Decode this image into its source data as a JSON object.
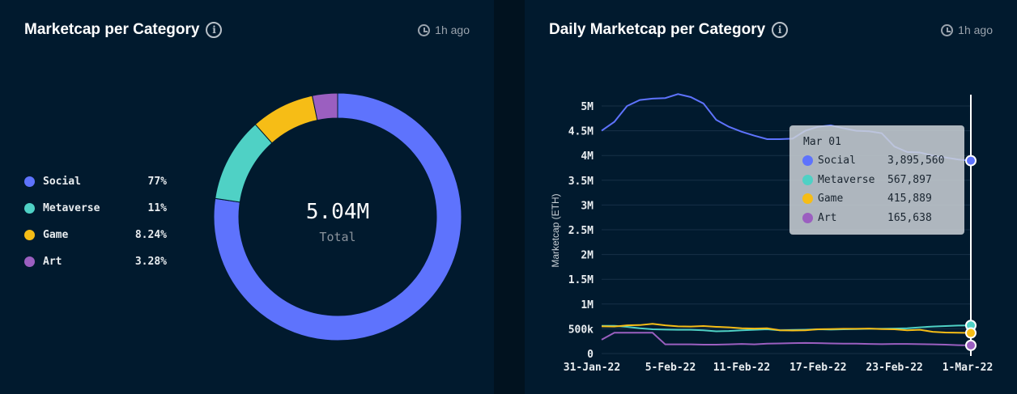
{
  "left_panel": {
    "title": "Marketcap per Category",
    "updated": "1h ago",
    "total_value": "5.04M",
    "total_label": "Total"
  },
  "right_panel": {
    "title": "Daily Marketcap per Category",
    "updated": "1h ago"
  },
  "colors": {
    "Social": "#5e73fd",
    "Metaverse": "#4fd1c5",
    "Game": "#f6bd16",
    "Art": "#9b5fc0"
  },
  "tooltip": {
    "date": "Mar 01",
    "rows": [
      {
        "name": "Social",
        "value": "3,895,560"
      },
      {
        "name": "Metaverse",
        "value": "567,897"
      },
      {
        "name": "Game",
        "value": "415,889"
      },
      {
        "name": "Art",
        "value": "165,638"
      }
    ]
  },
  "chart_data": [
    {
      "type": "pie",
      "donut": true,
      "categories": [
        "Social",
        "Metaverse",
        "Game",
        "Art"
      ],
      "values": [
        77,
        11,
        8.24,
        3.28
      ],
      "labels": [
        "77%",
        "11%",
        "8.24%",
        "3.28%"
      ],
      "legend": "left",
      "center_text": "5.04M",
      "center_subtext": "Total"
    },
    {
      "type": "line",
      "ylabel": "Marketcap (ETH)",
      "ylim": [
        0,
        5250000
      ],
      "yticks": [
        0,
        500000,
        1000000,
        1500000,
        2000000,
        2500000,
        3000000,
        3500000,
        4000000,
        4500000,
        5000000
      ],
      "ytick_labels": [
        "0",
        "500k",
        "1M",
        "1.5M",
        "2M",
        "2.5M",
        "3M",
        "3.5M",
        "4M",
        "4.5M",
        "5M"
      ],
      "xtick_labels": [
        "31-Jan-22",
        "5-Feb-22",
        "11-Feb-22",
        "17-Feb-22",
        "23-Feb-22",
        "1-Mar-22"
      ],
      "xtick_index": [
        0,
        5,
        11,
        17,
        23,
        29
      ],
      "x_start": "31-Jan-22",
      "x_end": "1-Mar-22",
      "grid": true,
      "series": [
        {
          "name": "Social",
          "values": [
            4500000,
            4680000,
            5000000,
            5120000,
            5150000,
            5160000,
            5240000,
            5180000,
            5050000,
            4720000,
            4580000,
            4480000,
            4400000,
            4330000,
            4330000,
            4340000,
            4500000,
            4580000,
            4610000,
            4550000,
            4500000,
            4490000,
            4450000,
            4180000,
            4070000,
            4060000,
            4000000,
            3960000,
            3920000,
            3895560
          ]
        },
        {
          "name": "Metaverse",
          "values": [
            560000,
            560000,
            540000,
            510000,
            490000,
            485000,
            480000,
            480000,
            470000,
            450000,
            455000,
            470000,
            480000,
            490000,
            470000,
            475000,
            480000,
            490000,
            485000,
            490000,
            495000,
            500000,
            500000,
            505000,
            510000,
            530000,
            545000,
            555000,
            565000,
            567897
          ]
        },
        {
          "name": "Game",
          "values": [
            550000,
            545000,
            570000,
            575000,
            600000,
            570000,
            550000,
            545000,
            555000,
            540000,
            530000,
            510000,
            505000,
            510000,
            470000,
            465000,
            470000,
            490000,
            495000,
            500000,
            500000,
            505000,
            495000,
            490000,
            470000,
            480000,
            440000,
            425000,
            420000,
            415889
          ]
        },
        {
          "name": "Art",
          "values": [
            280000,
            420000,
            420000,
            420000,
            420000,
            185000,
            185000,
            185000,
            180000,
            180000,
            185000,
            195000,
            185000,
            200000,
            205000,
            210000,
            215000,
            210000,
            205000,
            200000,
            200000,
            195000,
            190000,
            195000,
            195000,
            190000,
            185000,
            180000,
            170000,
            165638
          ]
        }
      ]
    }
  ]
}
